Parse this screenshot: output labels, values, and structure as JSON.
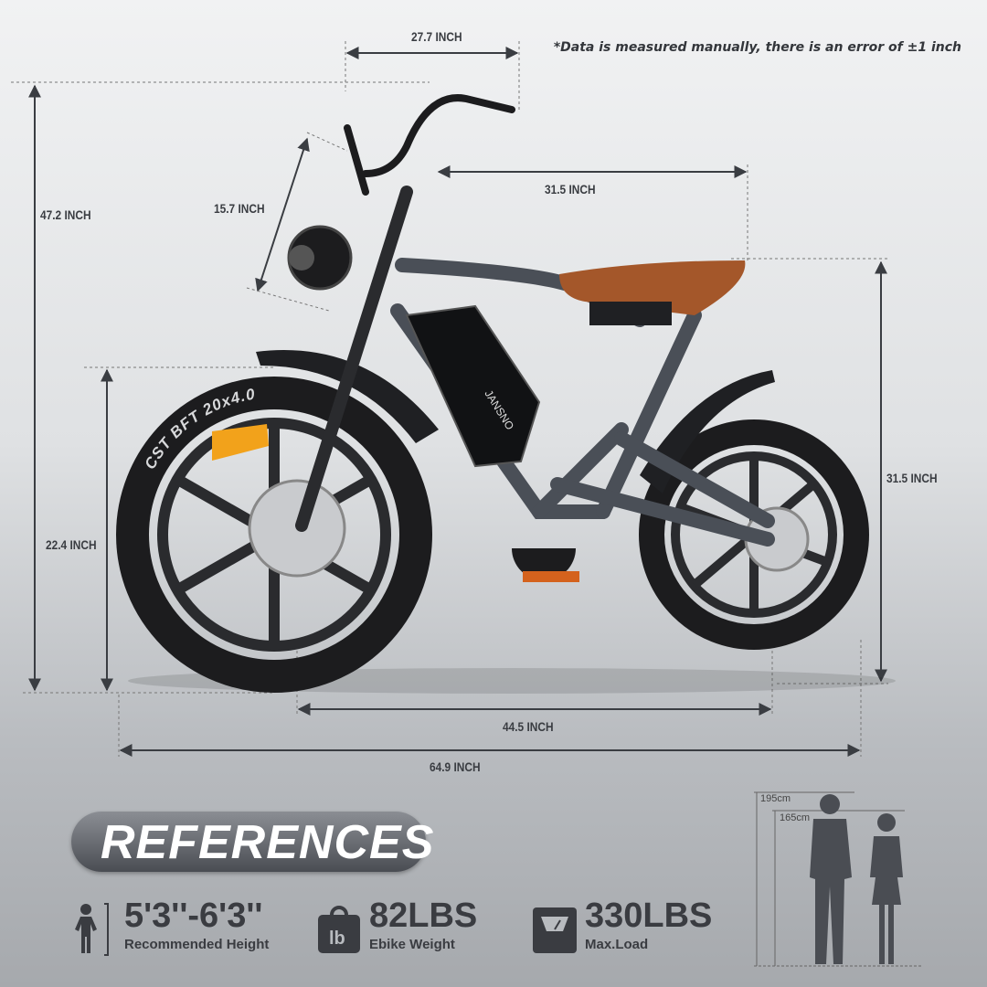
{
  "note": "*Data is measured manually, there is an error of ±1 inch",
  "dimensions": {
    "handlebar_width": "27.7 INCH",
    "total_height": "47.2 INCH",
    "stem_length": "15.7 INCH",
    "top_length": "31.5 INCH",
    "seat_height": "31.5 INCH",
    "front_wheel_height": "22.4 INCH",
    "wheelbase": "44.5 INCH",
    "total_length": "64.9 INCH"
  },
  "bike": {
    "brand": "JANSNO",
    "tire_text": "CST BFT 20x4.0"
  },
  "references": {
    "title": "REFERENCES",
    "items": [
      {
        "icon": "person-height-icon",
        "value": "5'3''-6'3''",
        "caption": "Recommended Height"
      },
      {
        "icon": "weight-bag-icon",
        "value": "82LBS",
        "caption": "Ebike Weight"
      },
      {
        "icon": "scale-icon",
        "value": "330LBS",
        "caption": "Max.Load"
      }
    ]
  },
  "people": {
    "tall": "195cm",
    "short": "165cm"
  },
  "colors": {
    "seat": "#a4572a",
    "frame": "#4a4f57",
    "tire": "#1c1c1e"
  }
}
